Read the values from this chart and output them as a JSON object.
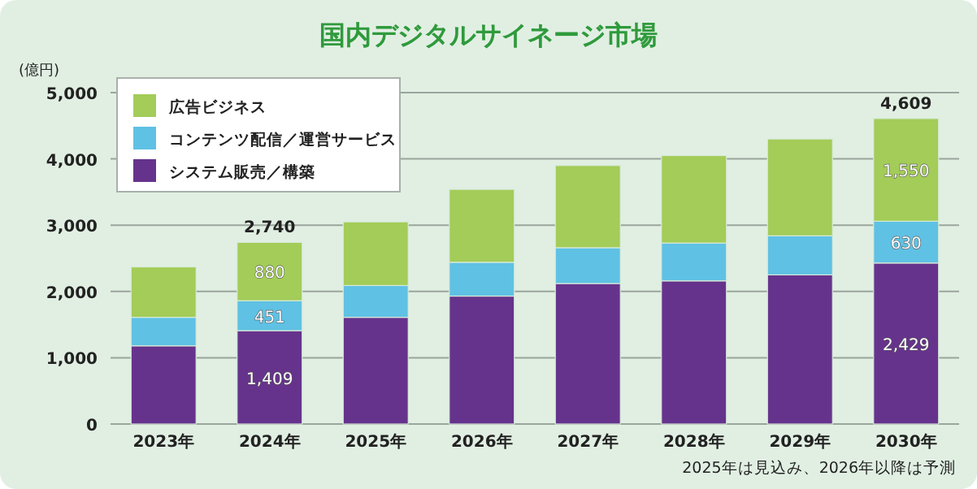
{
  "chart_data": {
    "type": "bar",
    "title": "国内デジタルサイネージ市場",
    "ylabel": "(億円)",
    "categories": [
      "2023年",
      "2024年",
      "2025年",
      "2026年",
      "2027年",
      "2028年",
      "2029年",
      "2030年"
    ],
    "stacked": true,
    "series": [
      {
        "name": "システム販売／構築",
        "color": "#66338c",
        "values": [
          1180,
          1409,
          1610,
          1930,
          2120,
          2160,
          2250,
          2429
        ],
        "value_labels": [
          null,
          "1,409",
          null,
          null,
          null,
          null,
          null,
          "2,429"
        ]
      },
      {
        "name": "コンテンツ配信／運営サービス",
        "color": "#5fc1e4",
        "values": [
          430,
          451,
          480,
          510,
          540,
          570,
          590,
          630
        ],
        "value_labels": [
          null,
          "451",
          null,
          null,
          null,
          null,
          null,
          "630"
        ]
      },
      {
        "name": "広告ビジネス",
        "color": "#a3cc58",
        "values": [
          760,
          880,
          960,
          1100,
          1240,
          1320,
          1460,
          1550
        ],
        "value_labels": [
          null,
          "880",
          null,
          null,
          null,
          null,
          null,
          "1,550"
        ]
      }
    ],
    "totals": [
      null,
      "2,740",
      null,
      null,
      null,
      null,
      null,
      "4,609"
    ],
    "ylim": [
      0,
      5000
    ],
    "yticks": [
      0,
      {
        "value": 1000,
        "label": "1,000"
      },
      {
        "value": 2000,
        "label": "2,000"
      },
      {
        "value": 3000,
        "label": "3,000"
      },
      {
        "value": 4000,
        "label": "4,000"
      },
      {
        "value": 5000,
        "label": "5,000"
      }
    ],
    "grid": "y",
    "legend": "top left",
    "annotations": [
      "2025年は見込み、2026年以降は予測"
    ]
  }
}
